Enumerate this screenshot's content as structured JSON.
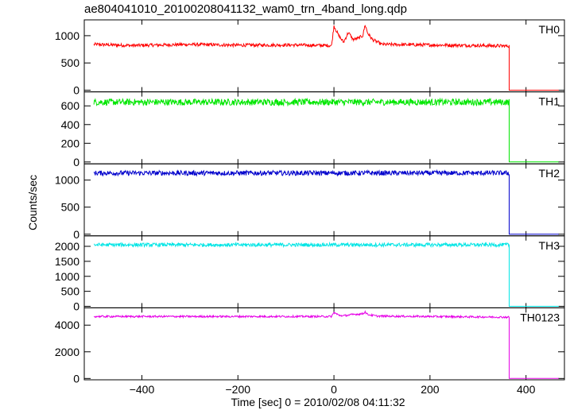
{
  "chart_data": {
    "type": "line",
    "title": "ae804041010_20100208041132_wam0_trn_4band_long.qdp",
    "xlabel": "Time [sec] 0 = 2010/02/08 04:11:32",
    "ylabel": "Counts/sec",
    "xlim": [
      -520,
      480
    ],
    "xticks": [
      -400,
      -200,
      0,
      200,
      400
    ],
    "grid": false,
    "data_start": -500,
    "data_end": 372,
    "drop_to_zero_at": 365,
    "panels": [
      {
        "name": "TH0",
        "color": "#ff0000",
        "ylim": [
          -30,
          1290
        ],
        "yticks": [
          0,
          500,
          1000
        ],
        "baseline": 820,
        "noise": 30,
        "x": [
          -500,
          -420,
          -300,
          -200,
          -100,
          -5,
          0,
          10,
          20,
          30,
          40,
          50,
          60,
          65,
          70,
          80,
          100,
          200,
          300,
          365
        ],
        "y": [
          840,
          820,
          840,
          825,
          830,
          820,
          1180,
          1000,
          880,
          1060,
          930,
          950,
          1000,
          1200,
          1050,
          930,
          840,
          830,
          820,
          810
        ]
      },
      {
        "name": "TH1",
        "color": "#00e600",
        "ylim": [
          -20,
          750
        ],
        "yticks": [
          0,
          200,
          400,
          600
        ],
        "baseline": 640,
        "noise": 35,
        "x": [
          -500,
          365
        ],
        "y": [
          640,
          640
        ]
      },
      {
        "name": "TH2",
        "color": "#0000cc",
        "ylim": [
          -30,
          1300
        ],
        "yticks": [
          0,
          500,
          1000
        ],
        "baseline": 1130,
        "noise": 45,
        "x": [
          -500,
          365
        ],
        "y": [
          1130,
          1130
        ]
      },
      {
        "name": "TH3",
        "color": "#00e5e5",
        "ylim": [
          -50,
          2350
        ],
        "yticks": [
          0,
          500,
          1000,
          1500,
          2000
        ],
        "baseline": 2050,
        "noise": 60,
        "x": [
          -500,
          365
        ],
        "y": [
          2050,
          2050
        ]
      },
      {
        "name": "TH0123",
        "color": "#e600e6",
        "ylim": [
          -100,
          5300
        ],
        "yticks": [
          0,
          2000,
          4000
        ],
        "baseline": 4650,
        "noise": 70,
        "x": [
          -500,
          -5,
          0,
          10,
          20,
          40,
          60,
          65,
          70,
          90,
          365
        ],
        "y": [
          4650,
          4650,
          4950,
          4750,
          4700,
          4800,
          4850,
          5000,
          4800,
          4680,
          4600
        ]
      }
    ]
  }
}
